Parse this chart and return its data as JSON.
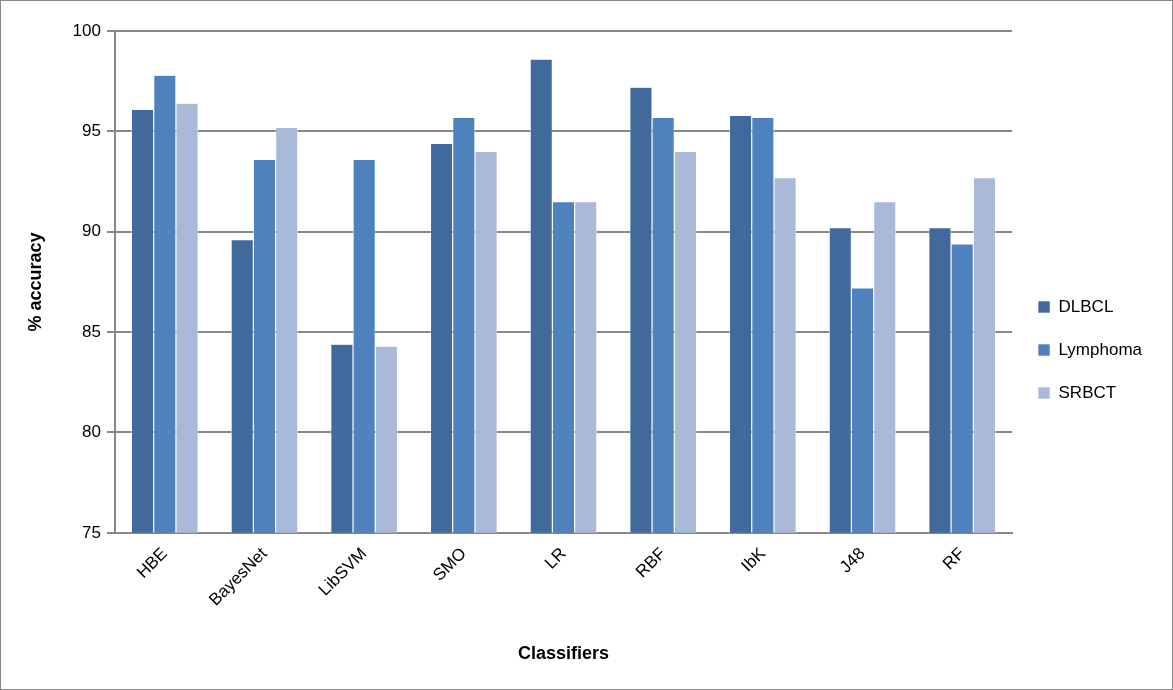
{
  "chart_data": {
    "type": "bar",
    "xlabel": "Classifiers",
    "ylabel": "% accuracy",
    "categories": [
      "HBE",
      "BayesNet",
      "LibSVM",
      "SMO",
      "LR",
      "RBF",
      "IbK",
      "J48",
      "RF"
    ],
    "series": [
      {
        "name": "DLBCL",
        "color": "#41699c",
        "values": [
          96.1,
          89.6,
          84.4,
          94.4,
          98.6,
          97.2,
          95.8,
          90.2,
          90.2
        ]
      },
      {
        "name": "Lymphoma",
        "color": "#4f81bd",
        "values": [
          97.8,
          93.6,
          93.6,
          95.7,
          91.5,
          95.7,
          95.7,
          87.2,
          89.4
        ]
      },
      {
        "name": "SRBCT",
        "color": "#aab9d8",
        "values": [
          96.4,
          95.2,
          84.3,
          94.0,
          91.5,
          94.0,
          92.7,
          91.5,
          92.7
        ]
      }
    ],
    "ylim": [
      75,
      100
    ],
    "yticks": [
      75,
      80,
      85,
      90,
      95,
      100
    ],
    "grid": "y",
    "legend": "right"
  }
}
